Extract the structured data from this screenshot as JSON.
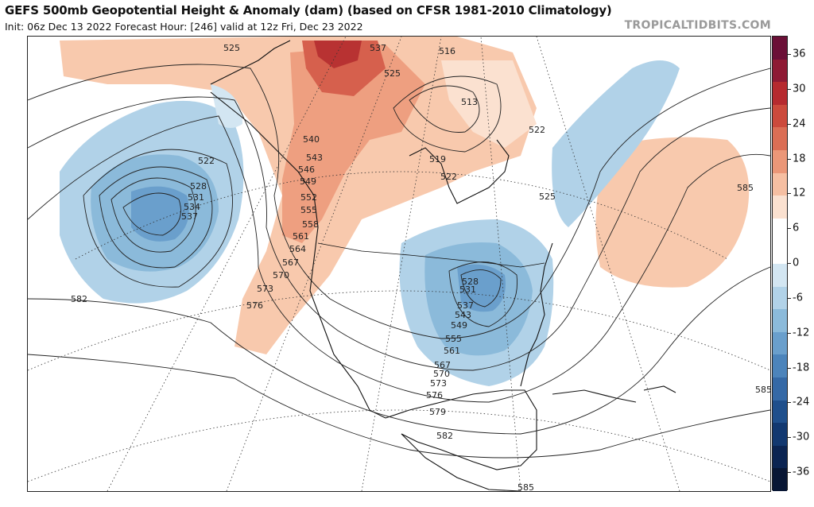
{
  "header": {
    "title": "GEFS 500mb Geopotential Height & Anomaly (dam) (based on CFSR 1981-2010 Climatology)",
    "subtitle": "Init: 06z Dec 13 2022   Forecast Hour: [246]   valid at 12z Fri, Dec 23 2022",
    "source": "TROPICALTIDBITS.COM"
  },
  "colorbar": {
    "labels": [
      "36",
      "30",
      "24",
      "18",
      "12",
      "6",
      "0",
      "-6",
      "-12",
      "-18",
      "-24",
      "-30",
      "-36"
    ],
    "colors": [
      "#6b1037",
      "#8e1a34",
      "#b62a2f",
      "#cc4a3c",
      "#db6e55",
      "#eb9778",
      "#f6bfa2",
      "#fbe1d0",
      "#ffffff",
      "#ffffff",
      "#d3e6f2",
      "#b1d2e8",
      "#8bbada",
      "#6a9fcc",
      "#4c84bb",
      "#3569a6",
      "#1f4f8c",
      "#123870",
      "#0b2452",
      "#081634"
    ]
  },
  "map": {
    "height_labels": [
      {
        "id": "h525a",
        "text": "525"
      },
      {
        "id": "h537a",
        "text": "537"
      },
      {
        "id": "h516",
        "text": "516"
      },
      {
        "id": "h525b",
        "text": "525"
      },
      {
        "id": "h513",
        "text": "513"
      },
      {
        "id": "h522a",
        "text": "522"
      },
      {
        "id": "h522b",
        "text": "522"
      },
      {
        "id": "h528a",
        "text": "528"
      },
      {
        "id": "h531a",
        "text": "531"
      },
      {
        "id": "h534",
        "text": "534"
      },
      {
        "id": "h537b",
        "text": "537"
      },
      {
        "id": "h540",
        "text": "540"
      },
      {
        "id": "h543a",
        "text": "543"
      },
      {
        "id": "h546",
        "text": "546"
      },
      {
        "id": "h549a",
        "text": "549"
      },
      {
        "id": "h552",
        "text": "552"
      },
      {
        "id": "h555a",
        "text": "555"
      },
      {
        "id": "h558",
        "text": "558"
      },
      {
        "id": "h561a",
        "text": "561"
      },
      {
        "id": "h564",
        "text": "564"
      },
      {
        "id": "h567a",
        "text": "567"
      },
      {
        "id": "h570a",
        "text": "570"
      },
      {
        "id": "h573a",
        "text": "573"
      },
      {
        "id": "h576a",
        "text": "576"
      },
      {
        "id": "h582a",
        "text": "582"
      },
      {
        "id": "h519",
        "text": "519"
      },
      {
        "id": "h522c",
        "text": "522"
      },
      {
        "id": "h525c",
        "text": "525"
      },
      {
        "id": "h585a",
        "text": "585"
      },
      {
        "id": "h528b",
        "text": "528"
      },
      {
        "id": "h531b",
        "text": "531"
      },
      {
        "id": "h537c",
        "text": "537"
      },
      {
        "id": "h543b",
        "text": "543"
      },
      {
        "id": "h549b",
        "text": "549"
      },
      {
        "id": "h555b",
        "text": "555"
      },
      {
        "id": "h561b",
        "text": "561"
      },
      {
        "id": "h567b",
        "text": "567"
      },
      {
        "id": "h570b",
        "text": "570"
      },
      {
        "id": "h573b",
        "text": "573"
      },
      {
        "id": "h576b",
        "text": "576"
      },
      {
        "id": "h579",
        "text": "579"
      },
      {
        "id": "h582b",
        "text": "582"
      },
      {
        "id": "h585b",
        "text": "585"
      },
      {
        "id": "h585c",
        "text": "585"
      }
    ]
  }
}
